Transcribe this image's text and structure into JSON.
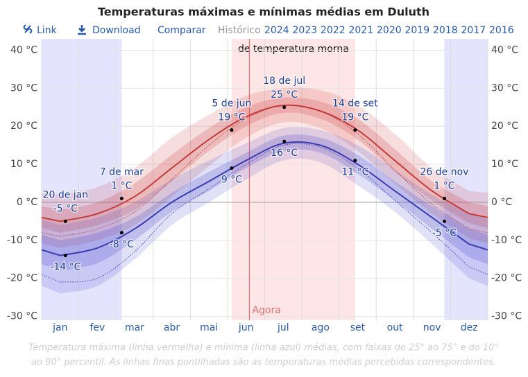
{
  "chart_data": {
    "type": "line",
    "title": "Temperaturas máximas e mínimas médias em Duluth",
    "nav": {
      "link": "Link",
      "download": "Download",
      "compare": "Comparar",
      "history": "Histórico",
      "years": [
        "2024",
        "2023",
        "2022",
        "2021",
        "2020",
        "2019",
        "2018",
        "2017",
        "2016"
      ]
    },
    "categories": [
      "jan",
      "fev",
      "mar",
      "abr",
      "mai",
      "jun",
      "jul",
      "ago",
      "set",
      "out",
      "nov",
      "dez"
    ],
    "ylim": [
      -31,
      43
    ],
    "yticks": [
      {
        "value": -30,
        "label": "-30 °C"
      },
      {
        "value": -20,
        "label": "-20 °C"
      },
      {
        "value": -10,
        "label": "-10 °C"
      },
      {
        "value": 0,
        "label": "0 °C"
      },
      {
        "value": 10,
        "label": "10 °C"
      },
      {
        "value": 20,
        "label": "20 °C"
      },
      {
        "value": 30,
        "label": "30 °C"
      },
      {
        "value": 40,
        "label": "40 °C"
      }
    ],
    "grid": true,
    "high": {
      "color": "#c23b3b",
      "values": [
        -5,
        -3,
        1.5,
        9,
        16.5,
        22.5,
        25.5,
        24,
        19,
        11,
        3,
        -3
      ],
      "p25": [
        -8,
        -6,
        -2,
        5.5,
        13.5,
        20,
        23.5,
        22,
        16.5,
        8,
        0.5,
        -5.5
      ],
      "p75": [
        -2,
        0,
        5,
        12.5,
        19.5,
        25,
        27.5,
        26.5,
        22,
        14,
        5.5,
        0
      ],
      "p10": [
        -12,
        -10,
        -6,
        1.5,
        9.5,
        17,
        21,
        19.5,
        13.5,
        5,
        -3,
        -9.5
      ],
      "p90": [
        2,
        4,
        9,
        17,
        23,
        28,
        30,
        29.5,
        25.5,
        18,
        9,
        3
      ],
      "perceived": [
        -9,
        -7,
        -2.5,
        6,
        15,
        22,
        25.5,
        24,
        18,
        8.5,
        -0.5,
        -7
      ]
    },
    "low": {
      "color": "#3b3bb0",
      "values": [
        -14,
        -12,
        -7,
        0,
        5.5,
        11,
        15.5,
        15,
        10,
        3,
        -4,
        -11
      ],
      "p25": [
        -18,
        -16,
        -10,
        -2.5,
        3,
        9,
        13.5,
        13,
        7.5,
        0.5,
        -7,
        -14.5
      ],
      "p75": [
        -10,
        -8,
        -4,
        2.5,
        8,
        13,
        17.5,
        17,
        12.5,
        5.5,
        -1,
        -7
      ],
      "p10": [
        -24,
        -22,
        -15,
        -6,
        0,
        6,
        11,
        10.5,
        4.5,
        -2.5,
        -11,
        -20
      ],
      "p90": [
        -6,
        -4,
        0,
        6,
        11,
        15.5,
        19.5,
        19,
        15,
        8.5,
        2,
        -3
      ],
      "perceived": [
        -21,
        -20,
        -13,
        -3,
        3.5,
        10,
        15,
        14.5,
        9,
        0.5,
        -8,
        -17
      ]
    },
    "warm_season": "de temperatura morna",
    "now": "Agora",
    "annotations": [
      {
        "date": "20 de jan",
        "high": -5,
        "high_label": "-5 °C",
        "low": -14,
        "low_label": "-14 °C"
      },
      {
        "date": "7 de mar",
        "high": 1,
        "high_label": "1 °C",
        "low": -8,
        "low_label": "-8 °C"
      },
      {
        "date": "5 de jun",
        "high": 19,
        "high_label": "19 °C",
        "low": 9,
        "low_label": "9 °C"
      },
      {
        "date": "18 de jul",
        "high": 25,
        "high_label": "25 °C",
        "low": 16,
        "low_label": "16 °C"
      },
      {
        "date": "14 de set",
        "high": 19,
        "high_label": "19 °C",
        "low": 11,
        "low_label": "11 °C"
      },
      {
        "date": "26 de nov",
        "high": 1,
        "high_label": "1 °C",
        "low": -5,
        "low_label": "-5 °C"
      }
    ],
    "caption": [
      "Temperatura máxima (linha vermelha) e mínima (linha azul) médias, com faixas do 25° ao 75° e do 10°",
      "ao 90° percentil. As linhas finas pontilhadas são as temperaturas médias percebidas correspondentes."
    ]
  }
}
